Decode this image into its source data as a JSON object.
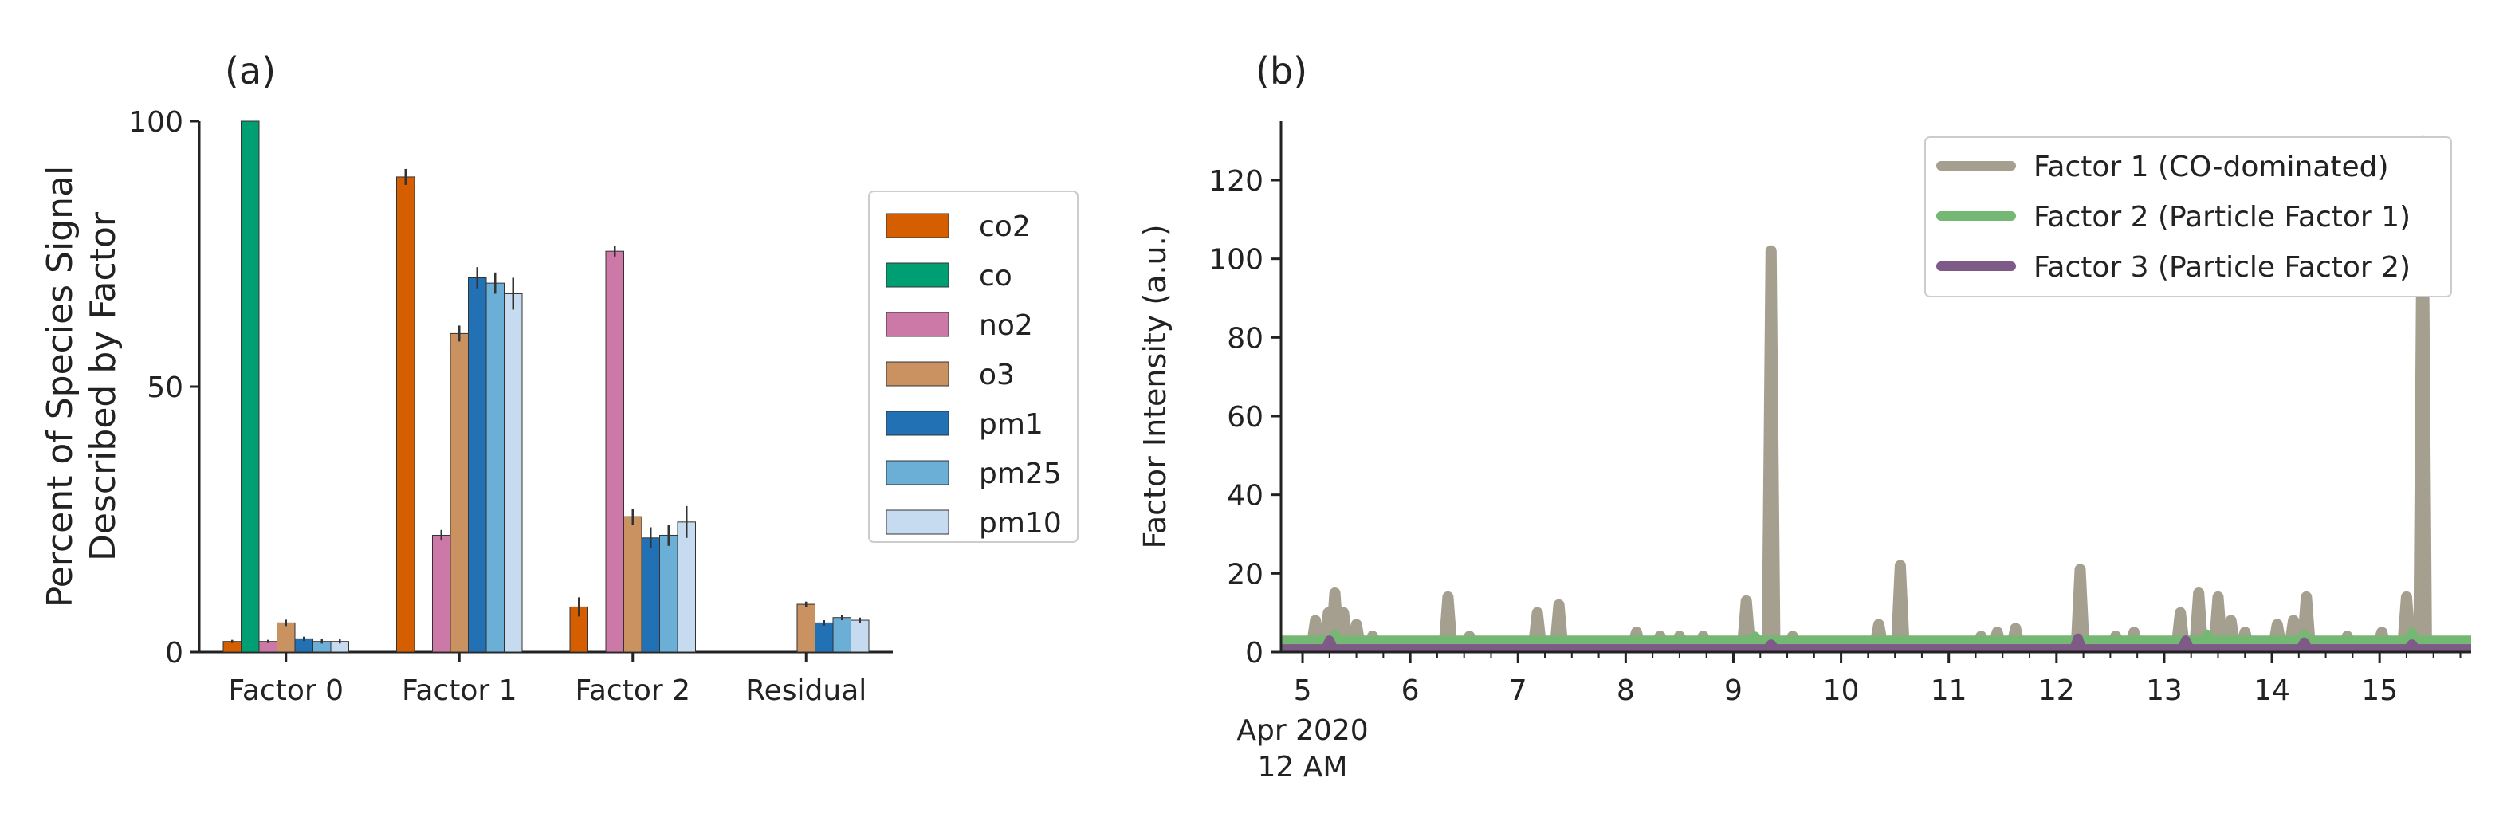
{
  "chart_data": [
    {
      "panel_label": "(a)",
      "type": "bar",
      "ylabel_lines": [
        "Percent of Species Signal",
        "Described by Factor"
      ],
      "xlabel": "",
      "ylim": [
        0,
        100
      ],
      "yticks": [
        0,
        50,
        100
      ],
      "categories": [
        "Factor 0",
        "Factor 1",
        "Factor 2",
        "Residual"
      ],
      "legend_position": "right",
      "grid": false,
      "series": [
        {
          "name": "co2",
          "color": "#d55e00",
          "values": [
            2.0,
            89.5,
            8.5,
            0.0
          ],
          "errors": [
            0.3,
            1.5,
            1.8,
            0.0
          ]
        },
        {
          "name": "co",
          "color": "#009e73",
          "values": [
            100.0,
            0.0,
            0.0,
            0.0
          ],
          "errors": [
            0.0,
            0.0,
            0.0,
            0.0
          ]
        },
        {
          "name": "no2",
          "color": "#cc79a7",
          "values": [
            2.0,
            22.0,
            75.5,
            0.0
          ],
          "errors": [
            0.3,
            1.0,
            1.0,
            0.0
          ]
        },
        {
          "name": "o3",
          "color": "#ca9161",
          "values": [
            5.5,
            60.0,
            25.5,
            9.0
          ],
          "errors": [
            0.6,
            1.5,
            1.5,
            0.5
          ]
        },
        {
          "name": "pm1",
          "color": "#2271b5",
          "values": [
            2.5,
            70.5,
            21.5,
            5.5
          ],
          "errors": [
            0.4,
            2.0,
            2.0,
            0.5
          ]
        },
        {
          "name": "pm25",
          "color": "#6baed6",
          "values": [
            2.0,
            69.5,
            22.0,
            6.5
          ],
          "errors": [
            0.4,
            2.0,
            2.0,
            0.5
          ]
        },
        {
          "name": "pm10",
          "color": "#c6dbef",
          "values": [
            2.0,
            67.5,
            24.5,
            6.0
          ],
          "errors": [
            0.4,
            3.0,
            3.0,
            0.5
          ]
        }
      ]
    },
    {
      "panel_label": "(b)",
      "type": "line",
      "ylabel": "Factor Intensity (a.u.)",
      "xlabel": "",
      "x_unit": "day of April 2020",
      "xlim": [
        4.8,
        15.85
      ],
      "ylim": [
        0,
        135
      ],
      "yticks": [
        0,
        20,
        40,
        60,
        80,
        100,
        120
      ],
      "xticks": [
        5,
        6,
        7,
        8,
        9,
        10,
        11,
        12,
        13,
        14,
        15
      ],
      "xtick_labels": [
        "5",
        "6",
        "7",
        "8",
        "9",
        "10",
        "11",
        "12",
        "13",
        "14",
        "15"
      ],
      "xtick_offset_label": [
        "Apr 2020",
        "12 AM"
      ],
      "legend_position": "upper right",
      "grid": false,
      "series": [
        {
          "name": "Factor 1 (CO-dominated)",
          "color": "#a59f8f",
          "baseline": 1.5,
          "spikes": [
            [
              5.12,
              8
            ],
            [
              5.24,
              10
            ],
            [
              5.3,
              15
            ],
            [
              5.38,
              10
            ],
            [
              5.5,
              7
            ],
            [
              5.65,
              4
            ],
            [
              6.35,
              14
            ],
            [
              6.55,
              4
            ],
            [
              7.18,
              10
            ],
            [
              7.38,
              12
            ],
            [
              8.1,
              5
            ],
            [
              8.32,
              4
            ],
            [
              8.5,
              4
            ],
            [
              8.72,
              4
            ],
            [
              9.12,
              13
            ],
            [
              9.35,
              102
            ],
            [
              9.55,
              4
            ],
            [
              10.35,
              7
            ],
            [
              10.55,
              22
            ],
            [
              11.3,
              4
            ],
            [
              11.45,
              5
            ],
            [
              11.62,
              6
            ],
            [
              12.22,
              21
            ],
            [
              12.55,
              4
            ],
            [
              12.72,
              5
            ],
            [
              13.15,
              10
            ],
            [
              13.32,
              15
            ],
            [
              13.5,
              14
            ],
            [
              13.62,
              8
            ],
            [
              13.75,
              5
            ],
            [
              14.05,
              7
            ],
            [
              14.2,
              8
            ],
            [
              14.32,
              14
            ],
            [
              14.7,
              4
            ],
            [
              15.02,
              5
            ],
            [
              15.25,
              14
            ],
            [
              15.4,
              130
            ]
          ]
        },
        {
          "name": "Factor 2 (Particle Factor 1)",
          "color": "#74b873",
          "baseline": 3.0,
          "spikes": [
            [
              5.3,
              4.5
            ],
            [
              9.2,
              4
            ],
            [
              13.4,
              4.5
            ],
            [
              14.3,
              4.5
            ],
            [
              15.3,
              5
            ]
          ]
        },
        {
          "name": "Factor 3 (Particle Factor 2)",
          "color": "#7e5a86",
          "baseline": 0.8,
          "spikes": [
            [
              5.25,
              3
            ],
            [
              9.35,
              2
            ],
            [
              12.2,
              3.5
            ],
            [
              13.2,
              3
            ],
            [
              14.3,
              2.5
            ],
            [
              15.3,
              2
            ]
          ]
        }
      ]
    }
  ]
}
